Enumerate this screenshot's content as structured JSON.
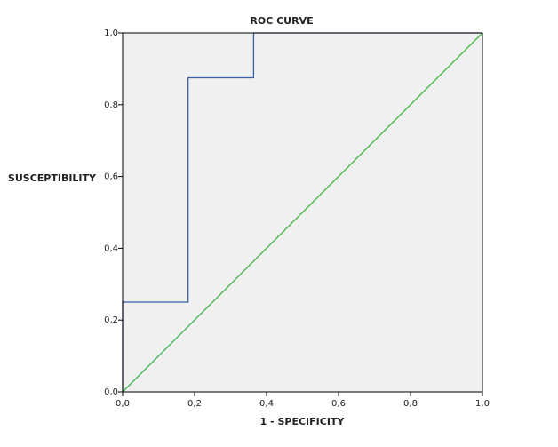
{
  "chart_data": {
    "type": "line",
    "title": "ROC CURVE",
    "x_label": "1 - SPECIFICITY",
    "y_label": "SUSCEPTIBILITY",
    "series": [
      {
        "color": "#3b5ca8",
        "x": [
          0,
          0,
          0.182,
          0.182,
          0.364,
          0.364,
          1
        ],
        "values": [
          0,
          0.25,
          0.25,
          0.875,
          0.875,
          1,
          1
        ]
      },
      {
        "color": "#3cb84a",
        "x": [
          0,
          1
        ],
        "values": [
          0,
          1
        ]
      }
    ],
    "xlim": [
      0,
      1
    ],
    "ylim": [
      0,
      1
    ],
    "xticks": [
      {
        "value": 0,
        "label": "0,0"
      },
      {
        "value": 0.2,
        "label": "0,2"
      },
      {
        "value": 0.4,
        "label": "0,4"
      },
      {
        "value": 0.6,
        "label": "0,6"
      },
      {
        "value": 0.8,
        "label": "0,8"
      },
      {
        "value": 1,
        "label": "1,0"
      }
    ],
    "yticks": [
      {
        "value": 0,
        "label": "0,0"
      },
      {
        "value": 0.2,
        "label": "0,2"
      },
      {
        "value": 0.4,
        "label": "0,4"
      },
      {
        "value": 0.6,
        "label": "0,6"
      },
      {
        "value": 0.8,
        "label": "0,8"
      },
      {
        "value": 1,
        "label": "1,0"
      }
    ],
    "background": "#f0f0f0"
  }
}
